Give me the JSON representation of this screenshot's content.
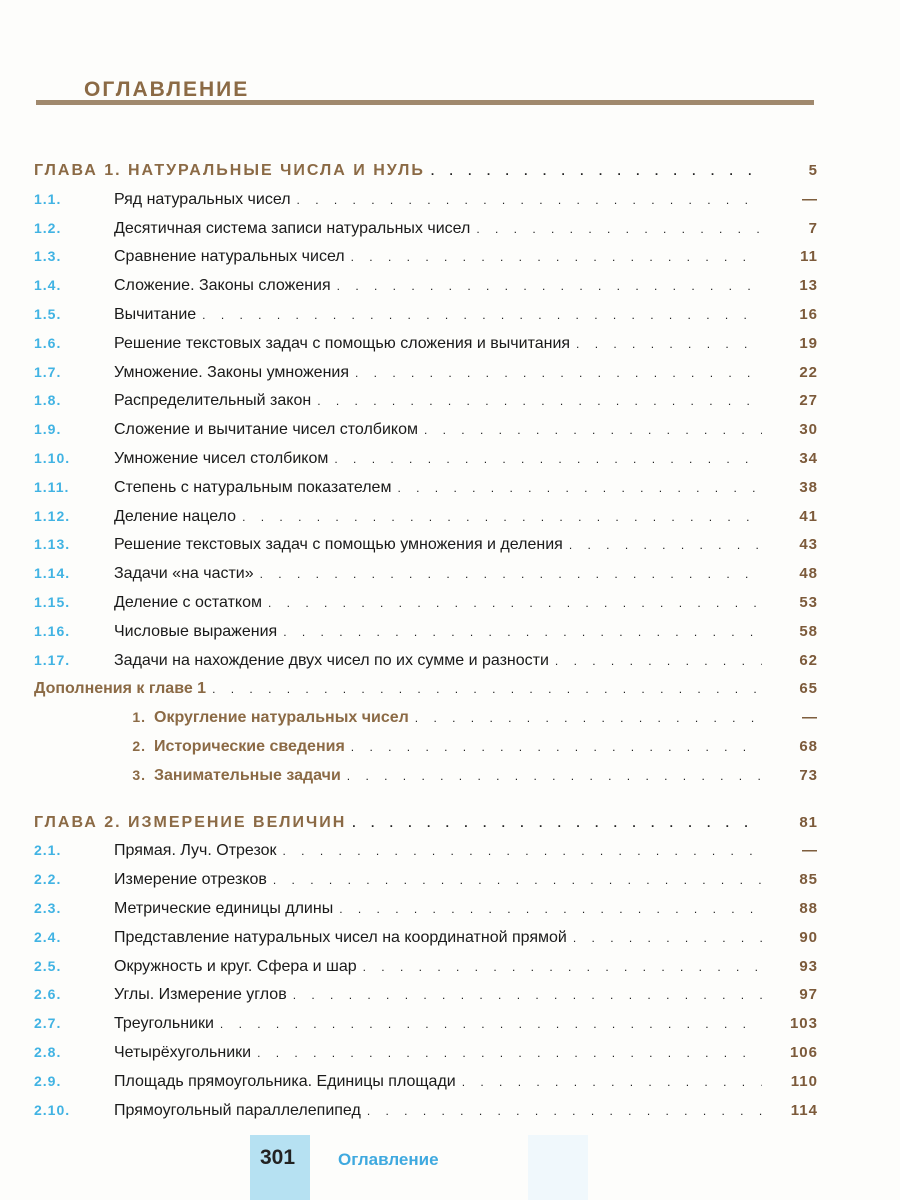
{
  "title": "Оглавление",
  "chapters": [
    {
      "heading": "Глава 1. Натуральные числа и нуль",
      "page": "5",
      "sections": [
        {
          "num": "1.1.",
          "title": "Ряд натуральных чисел",
          "page": "—"
        },
        {
          "num": "1.2.",
          "title": "Десятичная система записи натуральных чисел",
          "page": "7"
        },
        {
          "num": "1.3.",
          "title": "Сравнение натуральных чисел",
          "page": "11"
        },
        {
          "num": "1.4.",
          "title": "Сложение. Законы сложения",
          "page": "13"
        },
        {
          "num": "1.5.",
          "title": "Вычитание",
          "page": "16"
        },
        {
          "num": "1.6.",
          "title": "Решение текстовых задач с помощью сложения и вычитания",
          "page": "19"
        },
        {
          "num": "1.7.",
          "title": "Умножение. Законы умножения",
          "page": "22"
        },
        {
          "num": "1.8.",
          "title": "Распределительный закон",
          "page": "27"
        },
        {
          "num": "1.9.",
          "title": "Сложение и вычитание чисел столбиком",
          "page": "30"
        },
        {
          "num": "1.10.",
          "title": "Умножение чисел столбиком",
          "page": "34"
        },
        {
          "num": "1.11.",
          "title": "Степень с натуральным показателем",
          "page": "38"
        },
        {
          "num": "1.12.",
          "title": "Деление нацело",
          "page": "41"
        },
        {
          "num": "1.13.",
          "title": "Решение текстовых задач с помощью умножения и деления",
          "page": "43"
        },
        {
          "num": "1.14.",
          "title": "Задачи «на части»",
          "page": "48"
        },
        {
          "num": "1.15.",
          "title": "Деление с остатком",
          "page": "53"
        },
        {
          "num": "1.16.",
          "title": "Числовые выражения",
          "page": "58"
        },
        {
          "num": "1.17.",
          "title": "Задачи на нахождение двух чисел по их сумме и разности",
          "page": "62"
        }
      ],
      "supplement": {
        "title": "Дополнения к главе 1",
        "page": "65",
        "items": [
          {
            "num": "1.",
            "title": "Округление натуральных чисел",
            "page": "—"
          },
          {
            "num": "2.",
            "title": "Исторические сведения",
            "page": "68"
          },
          {
            "num": "3.",
            "title": "Занимательные задачи",
            "page": "73"
          }
        ]
      }
    },
    {
      "heading": "Глава 2. Измерение величин",
      "page": "81",
      "sections": [
        {
          "num": "2.1.",
          "title": "Прямая. Луч. Отрезок",
          "page": "—"
        },
        {
          "num": "2.2.",
          "title": "Измерение отрезков",
          "page": "85"
        },
        {
          "num": "2.3.",
          "title": "Метрические единицы длины",
          "page": "88"
        },
        {
          "num": "2.4.",
          "title": "Представление натуральных чисел на координатной прямой",
          "page": "90"
        },
        {
          "num": "2.5.",
          "title": "Окружность и круг. Сфера и шар",
          "page": "93"
        },
        {
          "num": "2.6.",
          "title": "Углы. Измерение углов",
          "page": "97"
        },
        {
          "num": "2.7.",
          "title": "Треугольники",
          "page": "103"
        },
        {
          "num": "2.8.",
          "title": "Четырёхугольники",
          "page": "106"
        },
        {
          "num": "2.9.",
          "title": "Площадь прямоугольника. Единицы площади",
          "page": "110"
        },
        {
          "num": "2.10.",
          "title": "Прямоугольный параллелепипед",
          "page": "114"
        }
      ]
    }
  ],
  "footer": {
    "page_number": "301",
    "section": "Оглавление"
  },
  "colors": {
    "accent_blue": "#41b3e3",
    "heading_brown": "#8b6a45"
  }
}
